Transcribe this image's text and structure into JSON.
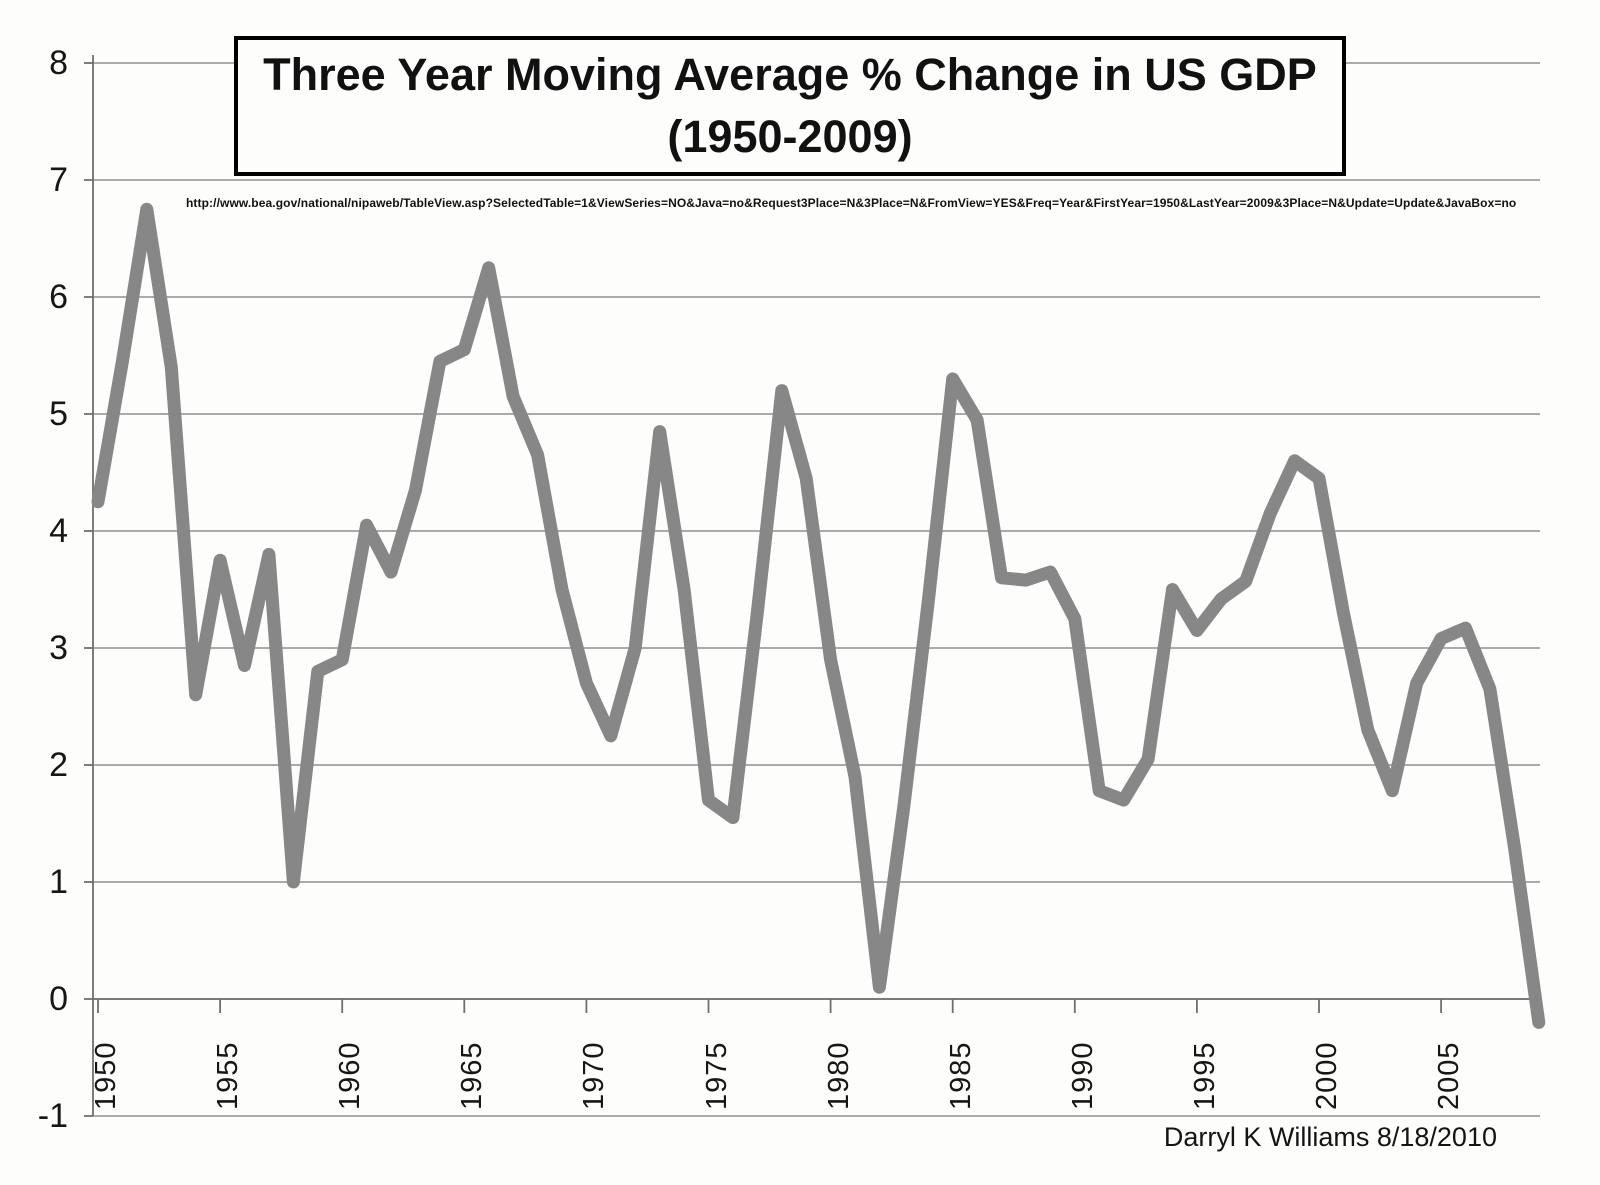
{
  "title": {
    "line1": "Three Year Moving Average % Change in US GDP",
    "line2": "(1950-2009)"
  },
  "source_url": "http://www.bea.gov/national/nipaweb/TableView.asp?SelectedTable=1&ViewSeries=NO&Java=no&Request3Place=N&3Place=N&FromView=YES&Freq=Year&FirstYear=1950&LastYear=2009&3Place=N&Update=Update&JavaBox=no",
  "attribution": "Darryl K Williams 8/18/2010",
  "colors": {
    "background": "#fdfdfc",
    "line": "#878787",
    "grid": "#8f8f8f",
    "axis": "#6f6f6f",
    "text": "#141414",
    "title_border": "#000000"
  },
  "chart_data": {
    "type": "line",
    "title": "Three Year Moving Average % Change in US GDP (1950-2009)",
    "xlabel": "",
    "ylabel": "",
    "legend": "none",
    "grid": "horizontal",
    "xlim": [
      1950,
      2009
    ],
    "ylim": [
      -1,
      8
    ],
    "yticks": [
      8,
      7,
      6,
      5,
      4,
      3,
      2,
      1,
      0,
      -1
    ],
    "xticks": [
      1950,
      1955,
      1960,
      1965,
      1970,
      1975,
      1980,
      1985,
      1990,
      1995,
      2000,
      2005
    ],
    "x": [
      1950,
      1951,
      1952,
      1953,
      1954,
      1955,
      1956,
      1957,
      1958,
      1959,
      1960,
      1961,
      1962,
      1963,
      1964,
      1965,
      1966,
      1967,
      1968,
      1969,
      1970,
      1971,
      1972,
      1973,
      1974,
      1975,
      1976,
      1977,
      1978,
      1979,
      1980,
      1981,
      1982,
      1983,
      1984,
      1985,
      1986,
      1987,
      1988,
      1989,
      1990,
      1991,
      1992,
      1993,
      1994,
      1995,
      1996,
      1997,
      1998,
      1999,
      2000,
      2001,
      2002,
      2003,
      2004,
      2005,
      2006,
      2007,
      2008,
      2009
    ],
    "values": [
      4.25,
      5.45,
      6.75,
      5.4,
      2.6,
      3.75,
      2.85,
      3.8,
      1.0,
      2.8,
      2.9,
      4.05,
      3.65,
      4.35,
      5.45,
      5.55,
      6.25,
      5.15,
      4.65,
      3.5,
      2.7,
      2.25,
      3.0,
      4.85,
      3.5,
      1.7,
      1.55,
      3.3,
      5.2,
      4.45,
      2.9,
      1.9,
      0.1,
      1.65,
      3.4,
      5.3,
      4.95,
      3.6,
      3.58,
      3.65,
      3.25,
      1.78,
      1.7,
      2.05,
      3.5,
      3.15,
      3.42,
      3.57,
      4.15,
      4.6,
      4.45,
      3.3,
      2.3,
      1.78,
      2.7,
      3.08,
      3.17,
      2.65,
      1.3,
      -0.2
    ]
  }
}
